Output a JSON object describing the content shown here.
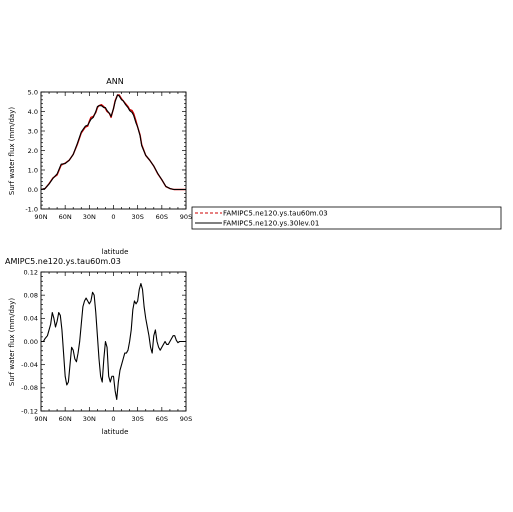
{
  "chart_data": [
    {
      "type": "line",
      "title": "ANN",
      "xlabel": "latitude",
      "ylabel": "Surf water flux (mm/day)",
      "xlim": [
        90,
        -90
      ],
      "ylim": [
        -1.0,
        5.0
      ],
      "xticks": [
        90,
        60,
        30,
        0,
        -30,
        -60,
        -90
      ],
      "xtick_labels": [
        "90N",
        "60N",
        "30N",
        "0",
        "30S",
        "60S",
        "90S"
      ],
      "yticks": [
        -1.0,
        0.0,
        1.0,
        2.0,
        3.0,
        4.0,
        5.0
      ],
      "ytick_labels": [
        "-1.0",
        "0.0",
        "1.0",
        "2.0",
        "3.0",
        "4.0",
        "5.0"
      ],
      "legend": "right",
      "grid": false,
      "series": [
        {
          "name": "FAMIPC5.ne120.ys.tau60m.03",
          "color": "#cc0000",
          "dash": "dashed",
          "x": [
            90,
            85,
            80,
            75,
            70,
            65,
            60,
            55,
            50,
            45,
            40,
            35,
            32,
            30,
            28,
            25,
            22,
            20,
            18,
            15,
            12,
            10,
            8,
            5,
            3,
            0,
            -2,
            -5,
            -7,
            -10,
            -12,
            -15,
            -18,
            -20,
            -23,
            -25,
            -28,
            -30,
            -33,
            -35,
            -40,
            -45,
            -50,
            -55,
            -60,
            -65,
            -70,
            -75,
            -80,
            -85,
            -90
          ],
          "y": [
            0.0,
            0.05,
            0.3,
            0.6,
            0.75,
            1.25,
            1.35,
            1.5,
            1.8,
            2.3,
            2.9,
            3.2,
            3.25,
            3.5,
            3.7,
            3.75,
            3.95,
            4.2,
            4.3,
            4.35,
            4.25,
            4.15,
            4.0,
            3.9,
            3.7,
            4.15,
            4.55,
            4.85,
            4.85,
            4.65,
            4.55,
            4.4,
            4.25,
            4.1,
            4.05,
            3.9,
            3.5,
            3.2,
            2.8,
            2.3,
            1.75,
            1.5,
            1.2,
            0.8,
            0.5,
            0.15,
            0.05,
            0.0,
            0.0,
            0.0,
            0.0
          ]
        },
        {
          "name": "FAMIPC5.ne120.ys.30lev.01",
          "color": "#000000",
          "dash": "solid",
          "x": [
            90,
            85,
            80,
            75,
            70,
            65,
            60,
            55,
            50,
            45,
            40,
            35,
            32,
            30,
            28,
            25,
            22,
            20,
            18,
            15,
            12,
            10,
            8,
            5,
            3,
            0,
            -2,
            -5,
            -7,
            -10,
            -12,
            -15,
            -18,
            -20,
            -23,
            -25,
            -28,
            -30,
            -33,
            -35,
            -40,
            -45,
            -50,
            -55,
            -60,
            -65,
            -70,
            -75,
            -80,
            -85,
            -90
          ],
          "y": [
            0.0,
            0.05,
            0.28,
            0.58,
            0.8,
            1.3,
            1.33,
            1.5,
            1.8,
            2.35,
            2.95,
            3.25,
            3.3,
            3.45,
            3.6,
            3.7,
            4.0,
            4.25,
            4.3,
            4.3,
            4.2,
            4.2,
            4.05,
            3.9,
            3.75,
            4.15,
            4.5,
            4.85,
            4.8,
            4.6,
            4.55,
            4.35,
            4.2,
            4.05,
            3.95,
            3.8,
            3.4,
            3.2,
            2.75,
            2.25,
            1.75,
            1.5,
            1.2,
            0.82,
            0.5,
            0.16,
            0.05,
            0.0,
            0.0,
            0.0,
            0.0
          ]
        }
      ]
    },
    {
      "type": "line",
      "title": "AMIPC5.ne120.ys.tau60m.03",
      "xlabel": "latitude",
      "ylabel": "Surf water flux (mm/day)",
      "xlim": [
        90,
        -90
      ],
      "ylim": [
        -0.12,
        0.12
      ],
      "xticks": [
        90,
        60,
        30,
        0,
        -30,
        -60,
        -90
      ],
      "xtick_labels": [
        "90N",
        "60N",
        "30N",
        "0",
        "30S",
        "60S",
        "90S"
      ],
      "yticks": [
        -0.12,
        -0.08,
        -0.04,
        0.0,
        0.04,
        0.08,
        0.12
      ],
      "ytick_labels": [
        "-0.12",
        "-0.08",
        "-0.04",
        "0.00",
        "0.04",
        "0.08",
        "0.12"
      ],
      "grid": false,
      "series": [
        {
          "color": "#000000",
          "dash": "solid",
          "x": [
            90,
            87,
            85,
            82,
            80,
            78,
            76,
            74,
            72,
            70,
            68,
            66,
            64,
            62,
            60,
            58,
            56,
            54,
            52,
            50,
            48,
            46,
            44,
            42,
            40,
            38,
            36,
            34,
            32,
            30,
            28,
            26,
            24,
            22,
            20,
            18,
            16,
            14,
            12,
            10,
            8,
            6,
            4,
            2,
            0,
            -2,
            -4,
            -6,
            -8,
            -10,
            -12,
            -14,
            -16,
            -18,
            -20,
            -22,
            -24,
            -26,
            -28,
            -30,
            -32,
            -34,
            -36,
            -38,
            -40,
            -42,
            -44,
            -46,
            -48,
            -50,
            -52,
            -54,
            -56,
            -58,
            -60,
            -62,
            -64,
            -66,
            -68,
            -70,
            -72,
            -74,
            -76,
            -78,
            -80,
            -82,
            -84,
            -86,
            -88,
            -90
          ],
          "y": [
            0.0,
            0.0,
            0.005,
            0.01,
            0.02,
            0.03,
            0.05,
            0.04,
            0.025,
            0.035,
            0.05,
            0.045,
            0.02,
            -0.02,
            -0.06,
            -0.075,
            -0.07,
            -0.04,
            -0.01,
            -0.015,
            -0.03,
            -0.035,
            -0.02,
            0.0,
            0.03,
            0.06,
            0.07,
            0.075,
            0.07,
            0.065,
            0.07,
            0.085,
            0.08,
            0.05,
            0.01,
            -0.03,
            -0.06,
            -0.07,
            -0.03,
            0.0,
            -0.01,
            -0.06,
            -0.07,
            -0.06,
            -0.06,
            -0.085,
            -0.1,
            -0.07,
            -0.05,
            -0.04,
            -0.03,
            -0.02,
            -0.02,
            -0.015,
            0.0,
            0.02,
            0.055,
            0.07,
            0.065,
            0.07,
            0.09,
            0.1,
            0.09,
            0.06,
            0.04,
            0.025,
            0.01,
            -0.01,
            -0.02,
            0.01,
            0.02,
            0.0,
            -0.01,
            -0.015,
            -0.01,
            -0.005,
            0.0,
            -0.005,
            -0.005,
            0.0,
            0.005,
            0.01,
            0.01,
            0.002,
            -0.002,
            0.0,
            0.0,
            0.0,
            0.0,
            0.0
          ]
        }
      ]
    }
  ]
}
